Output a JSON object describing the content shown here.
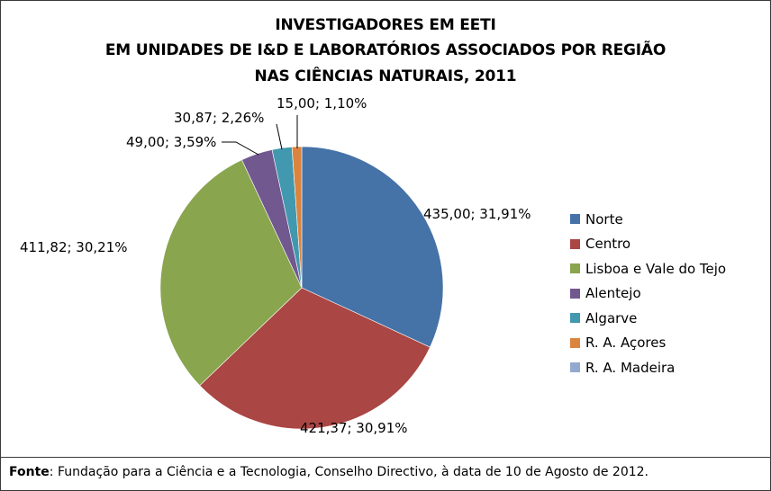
{
  "chart_data": {
    "type": "pie",
    "title_lines": [
      "INVESTIGADORES EM EETI",
      "EM UNIDADES DE I&D E LABORATÓRIOS ASSOCIADOS POR REGIÃO",
      "NAS CIÊNCIAS NATURAIS, 2011"
    ],
    "categories": [
      "Norte",
      "Centro",
      "Lisboa e Vale do Tejo",
      "Alentejo",
      "Algarve",
      "R. A. Açores",
      "R. A. Madeira"
    ],
    "values": [
      435.0,
      421.37,
      411.82,
      49.0,
      30.87,
      15.0,
      0
    ],
    "data_labels": [
      "435,00; 31,91%",
      "421,37; 30,91%",
      "411,82; 30,21%",
      "49,00; 3,59%",
      "30,87; 2,26%",
      "15,00; 1,10%",
      ""
    ],
    "colors": [
      "#4572A7",
      "#AA4643",
      "#89A54E",
      "#71588F",
      "#4198AF",
      "#DB843D",
      "#93A9CF"
    ],
    "legend_position": "right"
  },
  "footer": {
    "source_label": "Fonte",
    "source_text": ": Fundação para a Ciência e a Tecnologia, Conselho Directivo, à data de 10 de Agosto de 2012."
  }
}
